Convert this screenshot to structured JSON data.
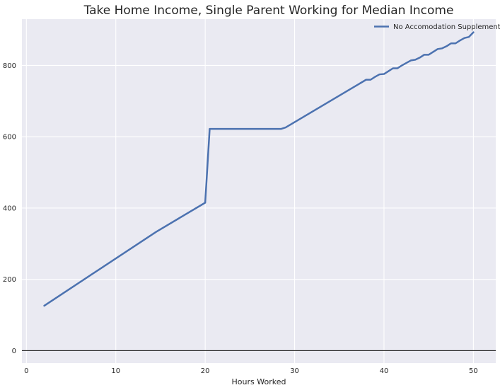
{
  "chart_data": {
    "type": "line",
    "title": "Take Home Income, Single Parent Working for Median Income",
    "xlabel": "Hours Worked",
    "ylabel": "",
    "xlim": [
      -0.5,
      52.5
    ],
    "ylim": [
      -35,
      930
    ],
    "xticks": [
      0,
      10,
      20,
      30,
      40,
      50
    ],
    "yticks": [
      0,
      200,
      400,
      600,
      800
    ],
    "grid": true,
    "legend_position": "top-right",
    "background": "#eaeaf2",
    "hlines": [
      {
        "y": 0,
        "color": "#000000"
      }
    ],
    "series": [
      {
        "name": "No Accomodation Supplement",
        "color": "#4c72b0",
        "x": [
          2,
          14.5,
          20,
          20.5,
          28.5,
          29,
          38,
          38.5,
          39,
          39.5,
          40,
          40.5,
          41,
          41.5,
          42,
          42.5,
          43,
          43.5,
          44,
          44.5,
          45,
          45.5,
          46,
          46.5,
          47,
          47.5,
          48,
          48.5,
          49,
          49.5,
          50
        ],
        "y": [
          126,
          333,
          415,
          622,
          622,
          626,
          760,
          760,
          768,
          775,
          776,
          784,
          792,
          792,
          800,
          807,
          814,
          816,
          822,
          830,
          830,
          838,
          846,
          848,
          854,
          862,
          862,
          870,
          877,
          880,
          893
        ]
      }
    ]
  }
}
